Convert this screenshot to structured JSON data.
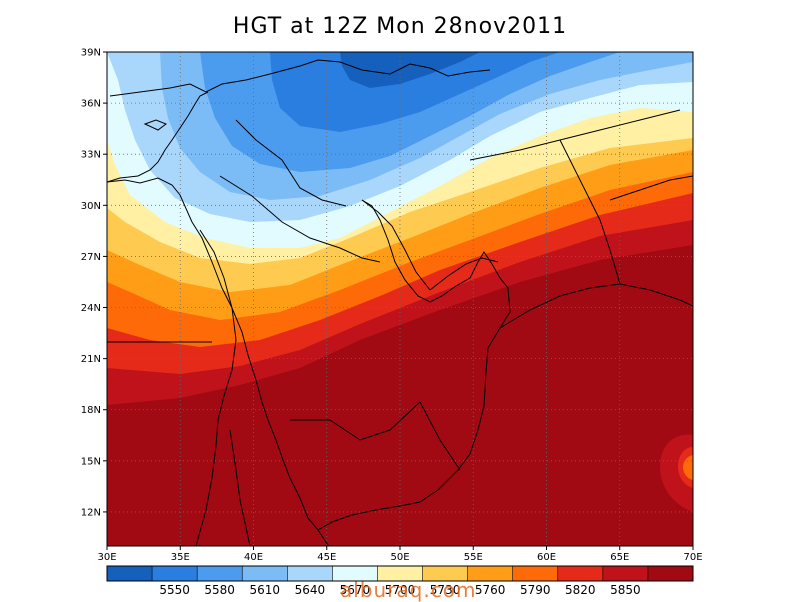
{
  "title": "HGT at 12Z Mon 28nov2011",
  "watermark": "alburaq.com",
  "map": {
    "lon_range": [
      30,
      70
    ],
    "lat_range": [
      10,
      39
    ],
    "lon_ticks": [
      {
        "value": 30,
        "label": "30E"
      },
      {
        "value": 35,
        "label": "35E"
      },
      {
        "value": 40,
        "label": "40E"
      },
      {
        "value": 45,
        "label": "45E"
      },
      {
        "value": 50,
        "label": "50E"
      },
      {
        "value": 55,
        "label": "55E"
      },
      {
        "value": 60,
        "label": "60E"
      },
      {
        "value": 65,
        "label": "65E"
      },
      {
        "value": 70,
        "label": "70E"
      }
    ],
    "lat_ticks": [
      {
        "value": 12,
        "label": "12N"
      },
      {
        "value": 15,
        "label": "15N"
      },
      {
        "value": 18,
        "label": "18N"
      },
      {
        "value": 21,
        "label": "21N"
      },
      {
        "value": 24,
        "label": "24N"
      },
      {
        "value": 27,
        "label": "27N"
      },
      {
        "value": 30,
        "label": "30N"
      },
      {
        "value": 33,
        "label": "33N"
      },
      {
        "value": 36,
        "label": "36N"
      },
      {
        "value": 39,
        "label": "39N"
      }
    ],
    "grid": "dotted"
  },
  "colorbar": {
    "colors": [
      "#1560bd",
      "#2a7ee0",
      "#4b9bef",
      "#7bbcf7",
      "#a9d6fb",
      "#e2fbff",
      "#fff0a3",
      "#ffca50",
      "#ff9d16",
      "#ff6a08",
      "#e62a1a",
      "#c0121a",
      "#a10a12"
    ],
    "labels": [
      "5550",
      "5580",
      "5610",
      "5640",
      "5670",
      "5700",
      "5730",
      "5760",
      "5790",
      "5820",
      "5850"
    ]
  }
}
